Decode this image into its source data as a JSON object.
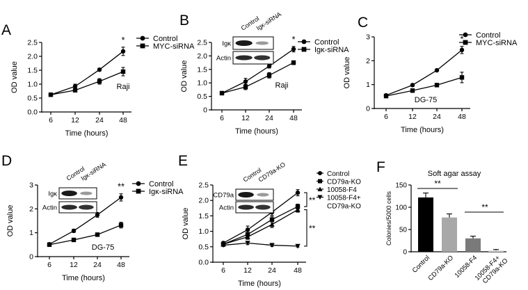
{
  "figure": {
    "axis_label_y_od": "OD value",
    "axis_label_x_time": "Time (hours)",
    "blot_row_actin": "Actin"
  },
  "chart_data": [
    {
      "panel": "A",
      "type": "line",
      "cell_line": "Raji",
      "categories": [
        "6",
        "12",
        "24",
        "48"
      ],
      "ylabel": "OD value",
      "xlabel": "Time (hours)",
      "ylim": [
        0,
        2.5
      ],
      "yticks": [
        "0.0",
        "0.5",
        "1.0",
        "1.5",
        "2.0",
        "2.5"
      ],
      "legend": "top-right",
      "series": [
        {
          "name": "Control",
          "marker": "circle",
          "values": [
            0.62,
            0.92,
            1.52,
            2.18
          ],
          "errors": [
            0.05,
            0.08,
            0.05,
            0.15
          ]
        },
        {
          "name": "MYC-siRNA",
          "marker": "square",
          "values": [
            0.62,
            0.78,
            1.1,
            1.45
          ],
          "errors": [
            0.05,
            0.06,
            0.1,
            0.15
          ]
        }
      ],
      "significance": [
        {
          "label": "*",
          "at": "48"
        }
      ]
    },
    {
      "panel": "B",
      "type": "line",
      "cell_line": "Raji",
      "categories": [
        "6",
        "12",
        "24",
        "48"
      ],
      "ylabel": "OD value",
      "xlabel": "Time (hours)",
      "ylim": [
        0,
        2.5
      ],
      "yticks": [
        "0",
        "0.5",
        "1.0",
        "1.5",
        "2.0",
        "2.5"
      ],
      "legend": "top-right",
      "series": [
        {
          "name": "Control",
          "marker": "circle",
          "values": [
            0.62,
            1.05,
            1.62,
            2.25
          ],
          "errors": [
            0.05,
            0.12,
            0.07,
            0.1
          ]
        },
        {
          "name": "Igκ-siRNA",
          "marker": "square",
          "values": [
            0.62,
            0.85,
            1.28,
            1.75
          ],
          "errors": [
            0.05,
            0.1,
            0.1,
            0.07
          ]
        }
      ],
      "significance": [
        {
          "label": "*",
          "at": "48"
        }
      ],
      "blot": {
        "lanes": [
          "Control",
          "Igκ-siRNA"
        ],
        "rows": [
          "Igκ",
          "Actin"
        ]
      }
    },
    {
      "panel": "C",
      "type": "line",
      "cell_line": "DG-75",
      "categories": [
        "6",
        "12",
        "24",
        "48"
      ],
      "ylabel": "OD value",
      "xlabel": "Time (hours)",
      "ylim": [
        0,
        3
      ],
      "yticks": [
        "0",
        "1",
        "2",
        "3"
      ],
      "legend": "top-right",
      "series": [
        {
          "name": "Control",
          "marker": "circle",
          "values": [
            0.55,
            0.98,
            1.6,
            2.45
          ],
          "errors": [
            0.05,
            0.06,
            0.05,
            0.15
          ]
        },
        {
          "name": "MYC-siRNA",
          "marker": "square",
          "values": [
            0.52,
            0.75,
            0.98,
            1.3
          ],
          "errors": [
            0.05,
            0.07,
            0.06,
            0.22
          ]
        }
      ],
      "significance": [
        {
          "label": "*",
          "at": "48"
        }
      ]
    },
    {
      "panel": "D",
      "type": "line",
      "cell_line": "DG-75",
      "categories": [
        "6",
        "12",
        "24",
        "48"
      ],
      "ylabel": "OD value",
      "xlabel": "Time (hours)",
      "ylim": [
        0,
        3
      ],
      "yticks": [
        "0",
        "1",
        "2",
        "3"
      ],
      "legend": "top-right",
      "series": [
        {
          "name": "Control",
          "marker": "circle",
          "values": [
            0.52,
            1.08,
            1.75,
            2.48
          ],
          "errors": [
            0.05,
            0.07,
            0.1,
            0.15
          ]
        },
        {
          "name": "Igκ-siRNA",
          "marker": "square",
          "values": [
            0.5,
            0.7,
            0.92,
            1.32
          ],
          "errors": [
            0.04,
            0.05,
            0.05,
            0.12
          ]
        }
      ],
      "significance": [
        {
          "label": "**",
          "at": "48"
        }
      ],
      "blot": {
        "lanes": [
          "Control",
          "Igκ-siRNA"
        ],
        "rows": [
          "Igκ",
          "Actin"
        ]
      }
    },
    {
      "panel": "E",
      "type": "line",
      "categories": [
        "6",
        "12",
        "24",
        "48"
      ],
      "ylabel": "OD value",
      "xlabel": "Time (hours)",
      "ylim": [
        0,
        2.5
      ],
      "yticks": [
        "0.0",
        "0.5",
        "1.0",
        "1.5",
        "2.0",
        "2.5"
      ],
      "legend": "right",
      "series": [
        {
          "name": "Control",
          "marker": "circle",
          "values": [
            0.62,
            1.05,
            1.62,
            2.25
          ],
          "errors": [
            0.05,
            0.12,
            0.1,
            0.1
          ]
        },
        {
          "name": "CD79a-KO",
          "marker": "square",
          "values": [
            0.58,
            0.9,
            1.38,
            1.8
          ],
          "errors": [
            0.05,
            0.1,
            0.1,
            0.08
          ]
        },
        {
          "name": "10058-F4",
          "marker": "triangle-up",
          "values": [
            0.58,
            0.82,
            1.22,
            1.7
          ],
          "errors": [
            0.05,
            0.08,
            0.1,
            0.08
          ]
        },
        {
          "name": "10058-F4+ CD79a-KO",
          "marker": "triangle-down",
          "values": [
            0.55,
            0.62,
            0.55,
            0.52
          ],
          "errors": [
            0.04,
            0.05,
            0.04,
            0.03
          ]
        }
      ],
      "significance": [
        {
          "label": "**",
          "between": [
            "Control",
            "CD79a-KO"
          ]
        },
        {
          "label": "**",
          "between": [
            "10058-F4",
            "10058-F4+ CD79a-KO"
          ]
        }
      ],
      "blot": {
        "lanes": [
          "Control",
          "CD79a-KO"
        ],
        "rows": [
          "CD79a",
          "Actin"
        ]
      }
    },
    {
      "panel": "F",
      "type": "bar",
      "title": "Soft agar assay",
      "categories": [
        "Control",
        "CD79a-KO",
        "10058-F4",
        "10058-F4+ CD79a-KO"
      ],
      "values": [
        122,
        77,
        30,
        3
      ],
      "errors": [
        10,
        8,
        5,
        2
      ],
      "colors": [
        "#000000",
        "#a8a8a8",
        "#7a7a7a",
        "#dcdcdc"
      ],
      "ylabel": "Colonies/5000 cells",
      "ylim": [
        0,
        150
      ],
      "yticks": [
        "0",
        "50",
        "100",
        "150"
      ],
      "significance": [
        {
          "label": "**",
          "between": [
            "Control",
            "CD79a-KO"
          ]
        },
        {
          "label": "**",
          "between": [
            "10058-F4",
            "10058-F4+ CD79a-KO"
          ]
        }
      ]
    }
  ]
}
